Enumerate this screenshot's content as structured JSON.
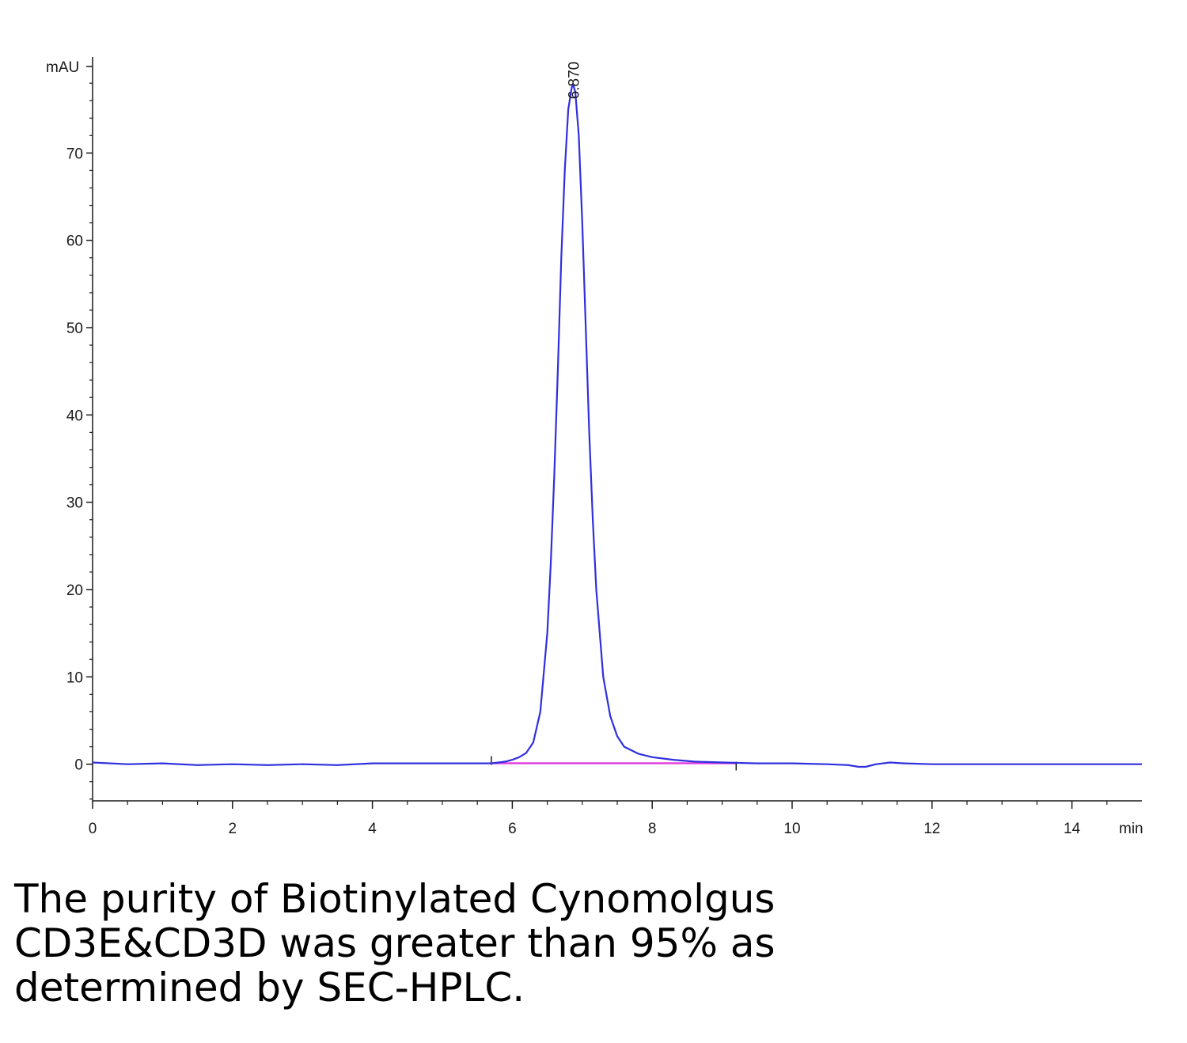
{
  "chart_data": {
    "type": "line",
    "ylabel": "mAU",
    "xlabel": "min",
    "xlim": [
      0,
      15
    ],
    "ylim": [
      -4.2,
      81
    ],
    "x_ticks": [
      0,
      2,
      4,
      6,
      8,
      10,
      12,
      14
    ],
    "y_ticks": [
      0,
      10,
      20,
      30,
      40,
      50,
      60,
      70
    ],
    "peak": {
      "label": "6.870",
      "x": 6.87,
      "y": 77.8
    },
    "integration_baseline": {
      "start": 5.7,
      "end": 9.2
    },
    "series": [
      {
        "color": "#2f2fe0",
        "x": [
          0,
          0.5,
          1,
          1.5,
          2,
          2.5,
          3,
          3.5,
          4,
          4.5,
          5,
          5.5,
          5.7,
          5.9,
          6.0,
          6.1,
          6.2,
          6.3,
          6.4,
          6.5,
          6.55,
          6.6,
          6.65,
          6.7,
          6.75,
          6.8,
          6.85,
          6.87,
          6.9,
          6.95,
          7.0,
          7.05,
          7.1,
          7.15,
          7.2,
          7.3,
          7.4,
          7.5,
          7.6,
          7.8,
          8.0,
          8.3,
          8.6,
          9.0,
          9.5,
          10.0,
          10.5,
          10.8,
          10.95,
          11.05,
          11.2,
          11.4,
          11.6,
          12.0,
          12.5,
          13.0,
          13.5,
          14.0,
          14.5,
          15.0
        ],
        "y": [
          0.2,
          0.0,
          0.1,
          -0.1,
          0.0,
          -0.1,
          0.0,
          -0.1,
          0.1,
          0.1,
          0.1,
          0.1,
          0.1,
          0.3,
          0.5,
          0.8,
          1.3,
          2.5,
          6.0,
          15.0,
          23.0,
          33.0,
          45.0,
          58.0,
          68.0,
          75.0,
          77.5,
          77.8,
          77.0,
          72.0,
          62.0,
          50.0,
          38.0,
          28.0,
          20.0,
          10.0,
          5.5,
          3.2,
          2.0,
          1.2,
          0.8,
          0.5,
          0.3,
          0.2,
          0.1,
          0.1,
          0.0,
          -0.1,
          -0.3,
          -0.3,
          0.0,
          0.2,
          0.1,
          0.0,
          0.0,
          0.0,
          0.0,
          0.0,
          0.0,
          0.0
        ]
      }
    ]
  },
  "caption": {
    "line1": "The purity of Biotinylated Cynomolgus",
    "line2": "CD3E&CD3D was greater than 95% as",
    "line3": "determined by SEC-HPLC."
  },
  "colors": {
    "trace": "#2f2fe0",
    "baseline": "#e040e0",
    "axis": "#1a1a1a"
  }
}
